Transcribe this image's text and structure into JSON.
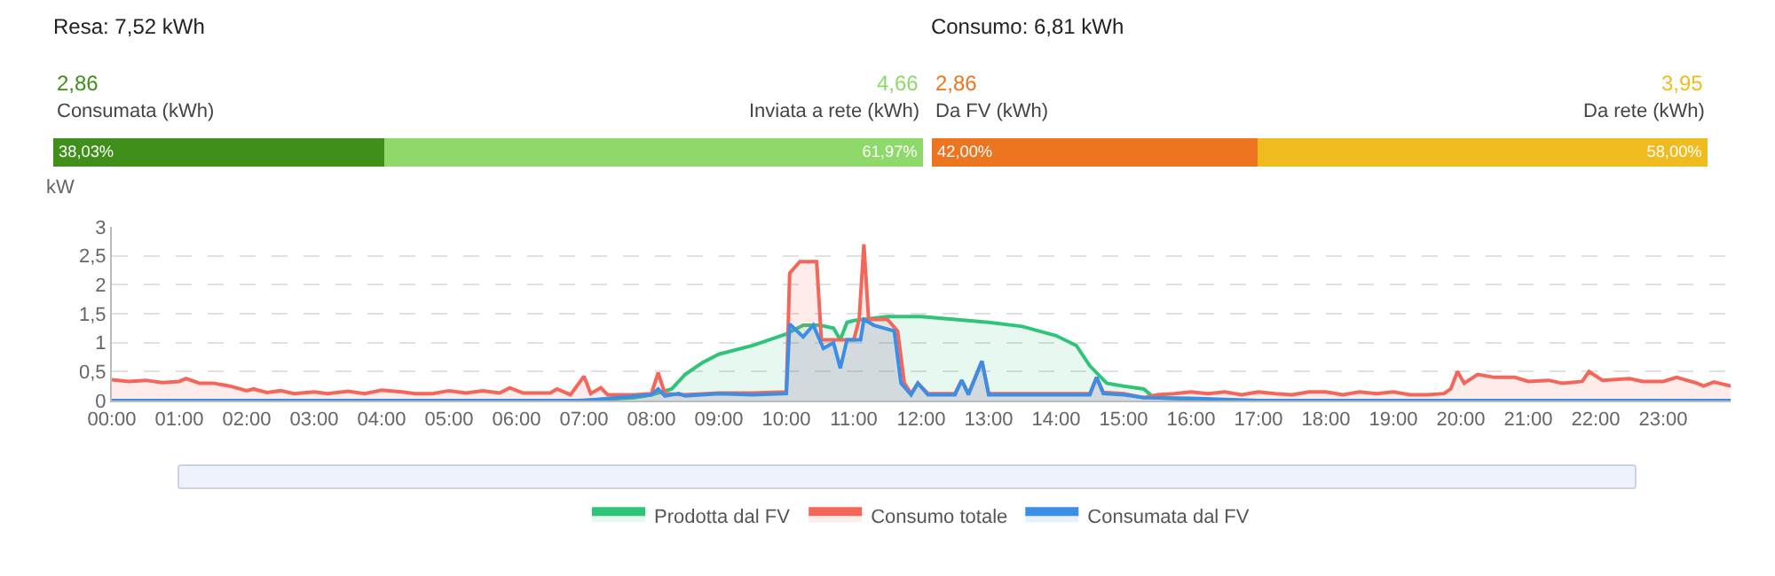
{
  "chart_data": [
    {
      "type": "bar",
      "orientation": "horizontal",
      "stacked": true,
      "title": "Resa: 7,52 kWh",
      "categories": [
        null
      ],
      "xlim": [
        0,
        100
      ],
      "tick_labels": false,
      "legend": false,
      "annotations": [
        "2,86",
        "4,66"
      ],
      "series": [
        {
          "name": "Consumata (kWh)",
          "color": "#3f8f1a",
          "values": [
            38.03
          ],
          "value_labels": [
            "38,03%"
          ]
        },
        {
          "name": "Inviata a rete (kWh)",
          "color": "#8fd96b",
          "values": [
            61.97
          ],
          "value_labels": [
            "61,97%"
          ]
        }
      ]
    },
    {
      "type": "bar",
      "orientation": "horizontal",
      "stacked": true,
      "title": "Consumo: 6,81 kWh",
      "categories": [
        null
      ],
      "xlim": [
        0,
        100
      ],
      "tick_labels": false,
      "legend": false,
      "annotations": [
        "2,86",
        "3,95"
      ],
      "series": [
        {
          "name": "Da FV (kWh)",
          "color": "#ee7520",
          "values": [
            42.0
          ],
          "value_labels": [
            "42,00%"
          ]
        },
        {
          "name": "Da rete (kWh)",
          "color": "#f0bb1f",
          "values": [
            58.0
          ],
          "value_labels": [
            "58,00%"
          ]
        }
      ]
    },
    {
      "type": "area",
      "ylabel": "kW",
      "xlim": [
        0,
        24
      ],
      "ylim": [
        0,
        3
      ],
      "grid": "y",
      "legend": "bottom",
      "marker": "none",
      "line_style": "solid",
      "xticks": [
        {
          "value": 0,
          "label": "00:00"
        },
        {
          "value": 1,
          "label": "01:00"
        },
        {
          "value": 2,
          "label": "02:00"
        },
        {
          "value": 3,
          "label": "03:00"
        },
        {
          "value": 4,
          "label": "04:00"
        },
        {
          "value": 5,
          "label": "05:00"
        },
        {
          "value": 6,
          "label": "06:00"
        },
        {
          "value": 7,
          "label": "07:00"
        },
        {
          "value": 8,
          "label": "08:00"
        },
        {
          "value": 9,
          "label": "09:00"
        },
        {
          "value": 10,
          "label": "10:00"
        },
        {
          "value": 11,
          "label": "11:00"
        },
        {
          "value": 12,
          "label": "12:00"
        },
        {
          "value": 13,
          "label": "13:00"
        },
        {
          "value": 14,
          "label": "14:00"
        },
        {
          "value": 15,
          "label": "15:00"
        },
        {
          "value": 16,
          "label": "16:00"
        },
        {
          "value": 17,
          "label": "17:00"
        },
        {
          "value": 18,
          "label": "18:00"
        },
        {
          "value": 19,
          "label": "19:00"
        },
        {
          "value": 20,
          "label": "20:00"
        },
        {
          "value": 21,
          "label": "21:00"
        },
        {
          "value": 22,
          "label": "22:00"
        },
        {
          "value": 23,
          "label": "23:00"
        }
      ],
      "yticks": [
        0,
        {
          "value": 0.5,
          "label": "0,5"
        },
        1,
        {
          "value": 1.5,
          "label": "1,5"
        },
        2,
        {
          "value": 2.5,
          "label": "2,5"
        },
        3
      ],
      "series": [
        {
          "name": "Prodotta dal FV",
          "color": "#2fc47a",
          "x": [
            6.9,
            7.3,
            7.75,
            8.0,
            8.3,
            8.5,
            8.75,
            9.0,
            9.5,
            10.0,
            10.25,
            10.5,
            10.7,
            10.8,
            10.9,
            11.0,
            11.5,
            12.0,
            12.5,
            13.0,
            13.5,
            14.0,
            14.3,
            14.5,
            14.75,
            15.0,
            15.3,
            15.45,
            16.0,
            16.5
          ],
          "values": [
            0,
            0.02,
            0.05,
            0.1,
            0.2,
            0.45,
            0.65,
            0.8,
            0.95,
            1.15,
            1.3,
            1.3,
            1.25,
            1.05,
            1.35,
            1.38,
            1.45,
            1.45,
            1.4,
            1.35,
            1.28,
            1.12,
            0.95,
            0.6,
            0.3,
            0.25,
            0.2,
            0.05,
            0.02,
            0
          ]
        },
        {
          "name": "Consumo totale",
          "color": "#f4665a",
          "x": [
            0,
            0.25,
            0.5,
            0.75,
            1.0,
            1.1,
            1.3,
            1.5,
            1.75,
            2.0,
            2.1,
            2.3,
            2.5,
            2.7,
            3.0,
            3.2,
            3.5,
            3.75,
            4.0,
            4.3,
            4.5,
            4.75,
            5.0,
            5.25,
            5.5,
            5.75,
            5.9,
            6.1,
            6.5,
            6.6,
            6.8,
            7.0,
            7.1,
            7.25,
            7.35,
            7.75,
            8.0,
            8.1,
            8.2,
            8.5,
            9.0,
            9.5,
            10.0,
            10.05,
            10.2,
            10.45,
            10.52,
            10.75,
            11.0,
            11.08,
            11.15,
            11.22,
            11.5,
            11.65,
            11.75,
            11.85,
            11.95,
            12.1,
            12.5,
            12.6,
            12.7,
            12.9,
            13.0,
            14.5,
            14.6,
            14.7,
            15.0,
            15.3,
            15.5,
            15.75,
            16.0,
            16.25,
            16.5,
            16.75,
            17.0,
            17.25,
            17.5,
            17.75,
            18.0,
            18.25,
            18.5,
            18.75,
            19.0,
            19.25,
            19.5,
            19.75,
            19.85,
            19.95,
            20.05,
            20.25,
            20.5,
            20.8,
            21.0,
            21.3,
            21.5,
            21.8,
            21.9,
            22.1,
            22.5,
            22.7,
            23.0,
            23.2,
            23.5,
            23.6,
            23.75,
            24.0
          ],
          "values": [
            0.36,
            0.33,
            0.35,
            0.31,
            0.33,
            0.38,
            0.3,
            0.3,
            0.25,
            0.17,
            0.2,
            0.14,
            0.17,
            0.12,
            0.15,
            0.12,
            0.16,
            0.12,
            0.18,
            0.15,
            0.12,
            0.12,
            0.17,
            0.13,
            0.17,
            0.13,
            0.22,
            0.13,
            0.13,
            0.2,
            0.1,
            0.42,
            0.12,
            0.22,
            0.1,
            0.1,
            0.12,
            0.48,
            0.12,
            0.1,
            0.13,
            0.13,
            0.15,
            2.2,
            2.4,
            2.4,
            1.05,
            1.05,
            1.05,
            1.4,
            2.7,
            1.4,
            1.4,
            1.2,
            0.3,
            0.12,
            0.3,
            0.12,
            0.12,
            0.35,
            0.12,
            0.68,
            0.12,
            0.12,
            0.4,
            0.14,
            0.12,
            0.05,
            0.1,
            0.12,
            0.15,
            0.12,
            0.15,
            0.1,
            0.15,
            0.12,
            0.1,
            0.15,
            0.15,
            0.1,
            0.15,
            0.12,
            0.15,
            0.1,
            0.1,
            0.12,
            0.2,
            0.5,
            0.3,
            0.45,
            0.4,
            0.4,
            0.33,
            0.35,
            0.3,
            0.33,
            0.5,
            0.35,
            0.38,
            0.33,
            0.33,
            0.4,
            0.3,
            0.25,
            0.32,
            0.25
          ]
        },
        {
          "name": "Consumata dal FV",
          "color": "#3a8ee6",
          "x": [
            0,
            7.0,
            7.5,
            8.0,
            8.1,
            8.2,
            8.4,
            8.5,
            9.0,
            9.5,
            10.0,
            10.05,
            10.25,
            10.4,
            10.55,
            10.7,
            10.8,
            10.9,
            11.1,
            11.15,
            11.3,
            11.6,
            11.7,
            11.85,
            11.95,
            12.1,
            12.5,
            12.6,
            12.7,
            12.9,
            13.0,
            14.5,
            14.6,
            14.7,
            15.0,
            15.3,
            16.0,
            17.0,
            24.0
          ],
          "values": [
            0,
            0,
            0.05,
            0.1,
            0.2,
            0.08,
            0.12,
            0.08,
            0.12,
            0.1,
            0.12,
            1.32,
            1.1,
            1.3,
            0.9,
            1.0,
            0.56,
            1.05,
            1.05,
            1.4,
            1.3,
            1.2,
            0.3,
            0.1,
            0.3,
            0.1,
            0.1,
            0.35,
            0.1,
            0.68,
            0.1,
            0.1,
            0.4,
            0.12,
            0.1,
            0.05,
            0.04,
            0,
            0
          ]
        }
      ]
    }
  ]
}
